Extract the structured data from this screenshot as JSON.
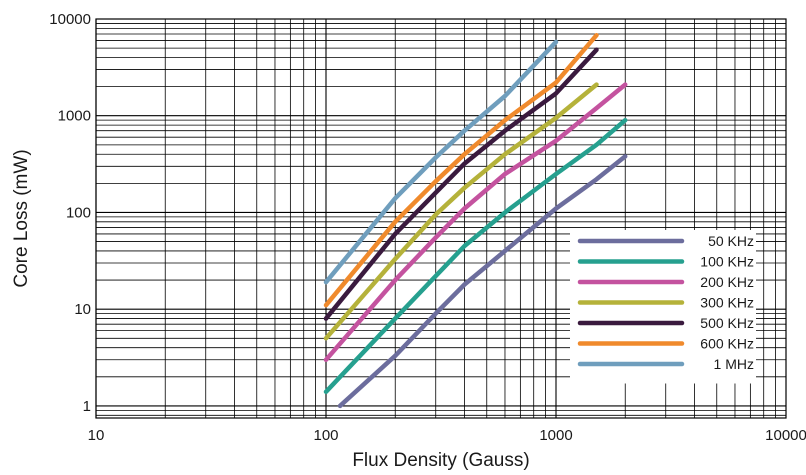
{
  "chart_data": {
    "type": "line",
    "xscale": "log",
    "yscale": "log",
    "xlabel": "Flux Density (Gauss)",
    "ylabel": "Core Loss (mW)",
    "xlim": [
      10,
      10000
    ],
    "ylim": [
      0.75,
      10000
    ],
    "x_ticks": [
      {
        "value": 10,
        "label": "10"
      },
      {
        "value": 100,
        "label": "100"
      },
      {
        "value": 1000,
        "label": "1000"
      },
      {
        "value": 10000,
        "label": "10000"
      }
    ],
    "y_ticks": [
      {
        "value": 1,
        "label": "1"
      },
      {
        "value": 10,
        "label": "10"
      },
      {
        "value": 100,
        "label": "100"
      },
      {
        "value": 1000,
        "label": "1000"
      },
      {
        "value": 10000,
        "label": "10000"
      }
    ],
    "grid": true,
    "legend_position": "bottom-right",
    "series": [
      {
        "name": "50 KHz",
        "color": "#6c6d9d",
        "x": [
          115,
          200,
          300,
          400,
          600,
          1000,
          1500,
          2000
        ],
        "y": [
          1,
          3.3,
          9,
          18,
          40,
          110,
          220,
          380
        ]
      },
      {
        "name": "100 KHz",
        "color": "#26a08f",
        "x": [
          100,
          200,
          300,
          400,
          600,
          1000,
          1500,
          2000
        ],
        "y": [
          1.4,
          8,
          22,
          45,
          100,
          250,
          500,
          900
        ]
      },
      {
        "name": "200 KHz",
        "color": "#c4539f",
        "x": [
          100,
          200,
          300,
          400,
          600,
          1000,
          1500,
          2000
        ],
        "y": [
          3,
          20,
          55,
          110,
          250,
          550,
          1200,
          2100
        ]
      },
      {
        "name": "300 KHz",
        "color": "#b5b23a",
        "x": [
          100,
          200,
          300,
          400,
          600,
          1000,
          1500
        ],
        "y": [
          5,
          33,
          95,
          180,
          400,
          950,
          2100
        ]
      },
      {
        "name": "500 KHz",
        "color": "#3a1a3e",
        "x": [
          100,
          200,
          300,
          400,
          600,
          1000,
          1500
        ],
        "y": [
          8,
          60,
          160,
          320,
          700,
          1700,
          4800
        ]
      },
      {
        "name": "600 KHz",
        "color": "#f08a2c",
        "x": [
          100,
          200,
          300,
          400,
          600,
          1000,
          1500
        ],
        "y": [
          11,
          80,
          210,
          400,
          900,
          2200,
          6800
        ]
      },
      {
        "name": "1 MHz",
        "color": "#6f9ebd",
        "x": [
          100,
          200,
          300,
          400,
          600,
          1000
        ],
        "y": [
          19,
          140,
          370,
          700,
          1600,
          5800
        ]
      }
    ]
  }
}
